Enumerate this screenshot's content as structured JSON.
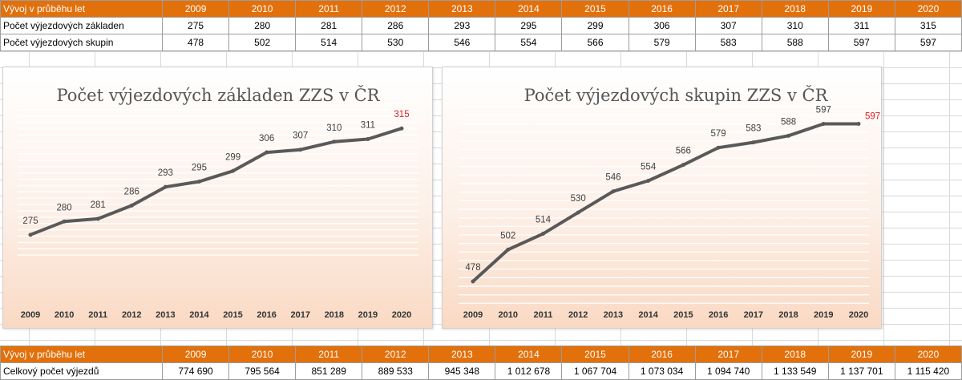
{
  "top_table": {
    "header": "Vývoj v průběhu let",
    "years": [
      "2009",
      "2010",
      "2011",
      "2012",
      "2013",
      "2014",
      "2015",
      "2016",
      "2017",
      "2018",
      "2019",
      "2020"
    ],
    "rows": [
      {
        "label": "Počet výjezdových základen",
        "values": [
          "275",
          "280",
          "281",
          "286",
          "293",
          "295",
          "299",
          "306",
          "307",
          "310",
          "311",
          "315"
        ]
      },
      {
        "label": "Počet výjezdových skupin",
        "values": [
          "478",
          "502",
          "514",
          "530",
          "546",
          "554",
          "566",
          "579",
          "583",
          "588",
          "597",
          "597"
        ]
      }
    ]
  },
  "bottom_table": {
    "header": "Vývoj v průběhu let",
    "years": [
      "2009",
      "2010",
      "2011",
      "2012",
      "2013",
      "2014",
      "2015",
      "2016",
      "2017",
      "2018",
      "2019",
      "2020"
    ],
    "rows": [
      {
        "label": "Celkový počet výjezdů",
        "values": [
          "774 690",
          "795 564",
          "851 289",
          "889 533",
          "945 348",
          "1 012 678",
          "1 067 704",
          "1 073 034",
          "1 094 740",
          "1 133 549",
          "1 137 701",
          "1 115 420"
        ]
      }
    ]
  },
  "colors": {
    "header_bg": "#e2700b",
    "line": "#595959",
    "highlight_label": "#d91f1f"
  },
  "chart_data": [
    {
      "type": "line",
      "title": "Počet výjezdových základen ZZS v ČR",
      "categories": [
        "2009",
        "2010",
        "2011",
        "2012",
        "2013",
        "2014",
        "2015",
        "2016",
        "2017",
        "2018",
        "2019",
        "2020"
      ],
      "values": [
        275,
        280,
        281,
        286,
        293,
        295,
        299,
        306,
        307,
        310,
        311,
        315
      ],
      "ylim": [
        265,
        322
      ],
      "grid": true,
      "data_labels": true,
      "highlight_last": true
    },
    {
      "type": "line",
      "title": "Počet výjezdových skupin ZZS v ČR",
      "categories": [
        "2009",
        "2010",
        "2011",
        "2012",
        "2013",
        "2014",
        "2015",
        "2016",
        "2017",
        "2018",
        "2019",
        "2020"
      ],
      "values": [
        478,
        502,
        514,
        530,
        546,
        554,
        566,
        579,
        583,
        588,
        597,
        597
      ],
      "ylim": [
        455,
        610
      ],
      "grid": true,
      "data_labels": true,
      "highlight_last": true
    }
  ]
}
